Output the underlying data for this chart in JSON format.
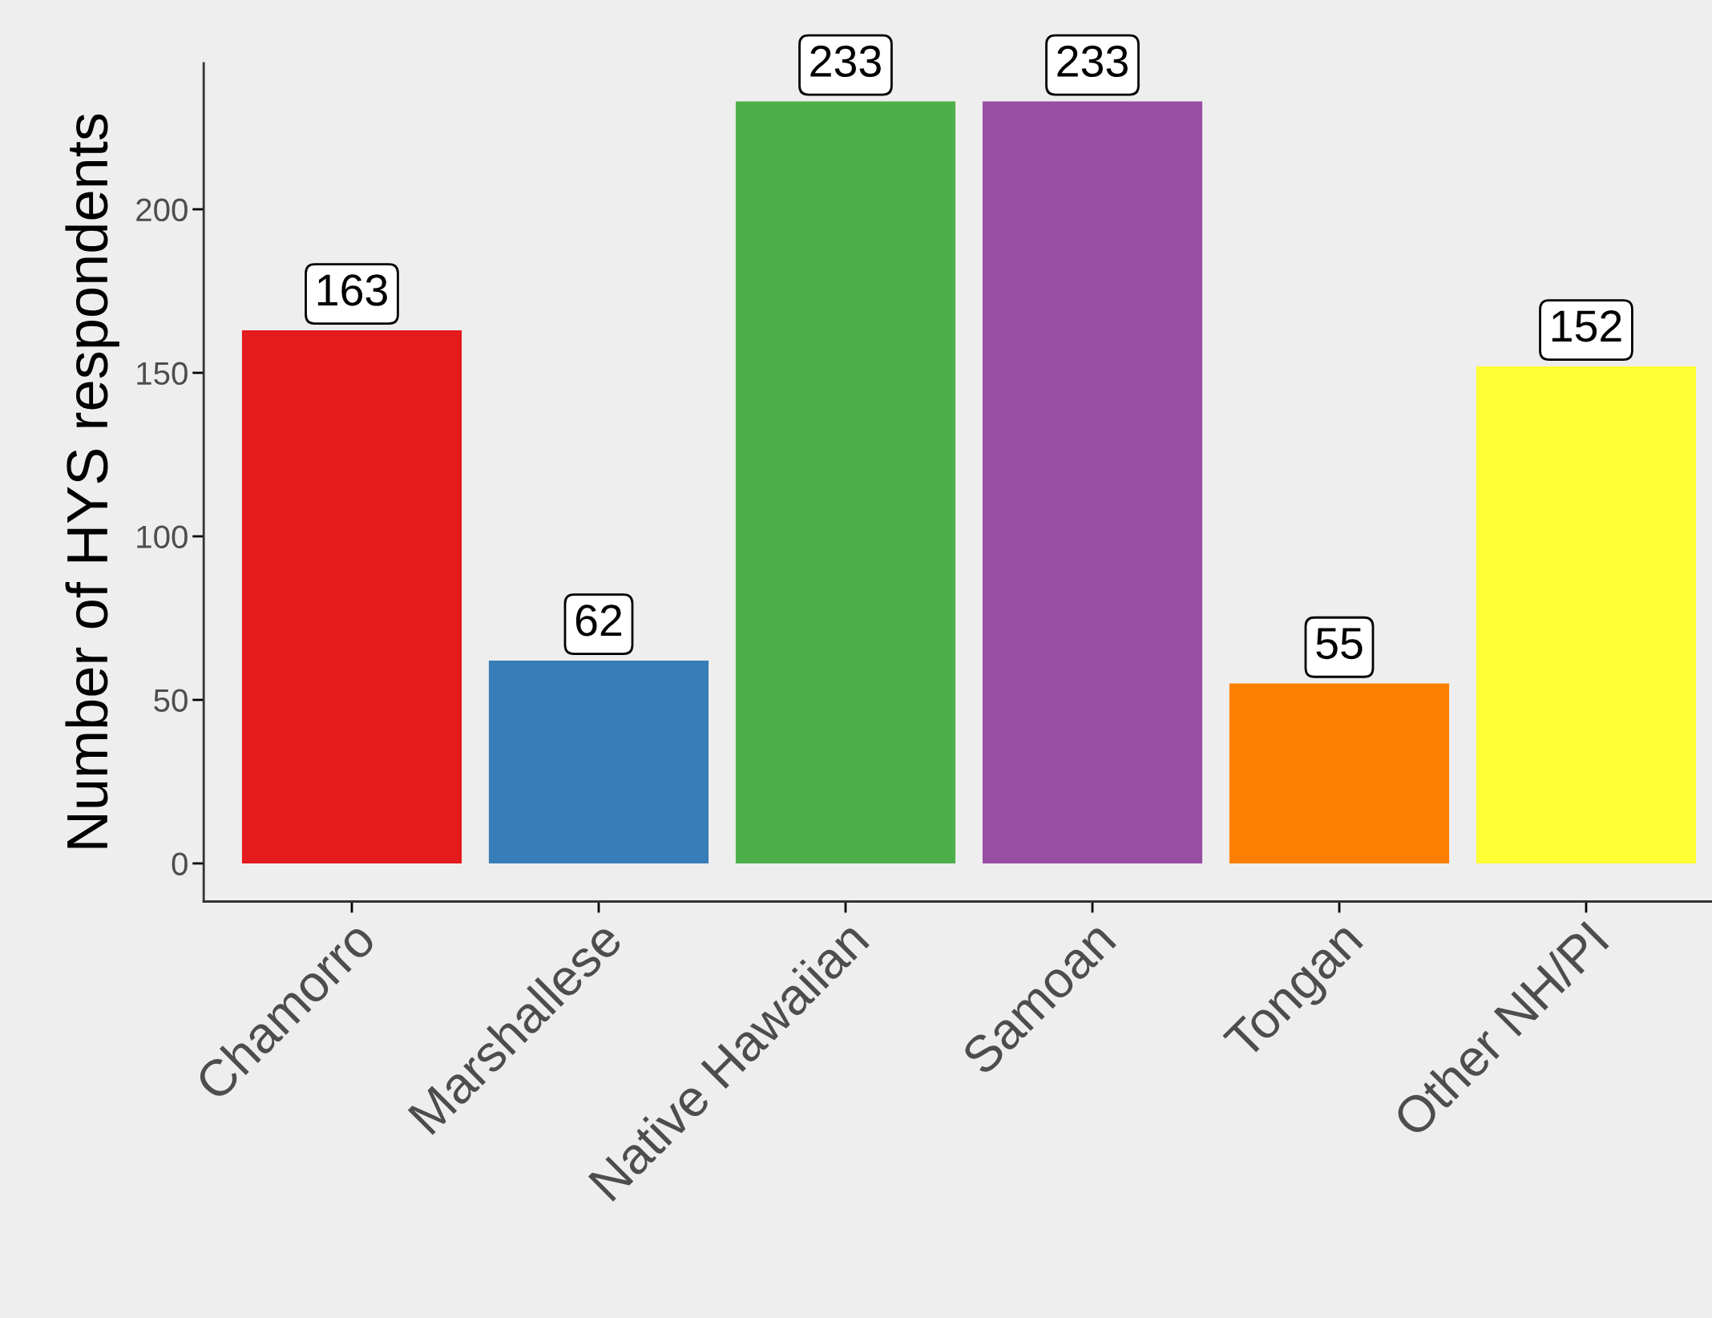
{
  "chart_data": {
    "type": "bar",
    "ylabel": "Number of HYS respondents",
    "categories": [
      "Chamorro",
      "Marshallese",
      "Native Hawaiian",
      "Samoan",
      "Tongan",
      "Other NH/PI"
    ],
    "values": [
      163,
      62,
      233,
      233,
      55,
      152
    ],
    "colors": [
      "#e41a1c",
      "#377eb8",
      "#4daf4a",
      "#984ea3",
      "#ff7f00",
      "#ffff33"
    ],
    "ylim": [
      -11.65,
      244.65
    ],
    "yticks": [
      0,
      50,
      100,
      150,
      200
    ],
    "data_labels": true,
    "grid": false,
    "legend": false
  }
}
